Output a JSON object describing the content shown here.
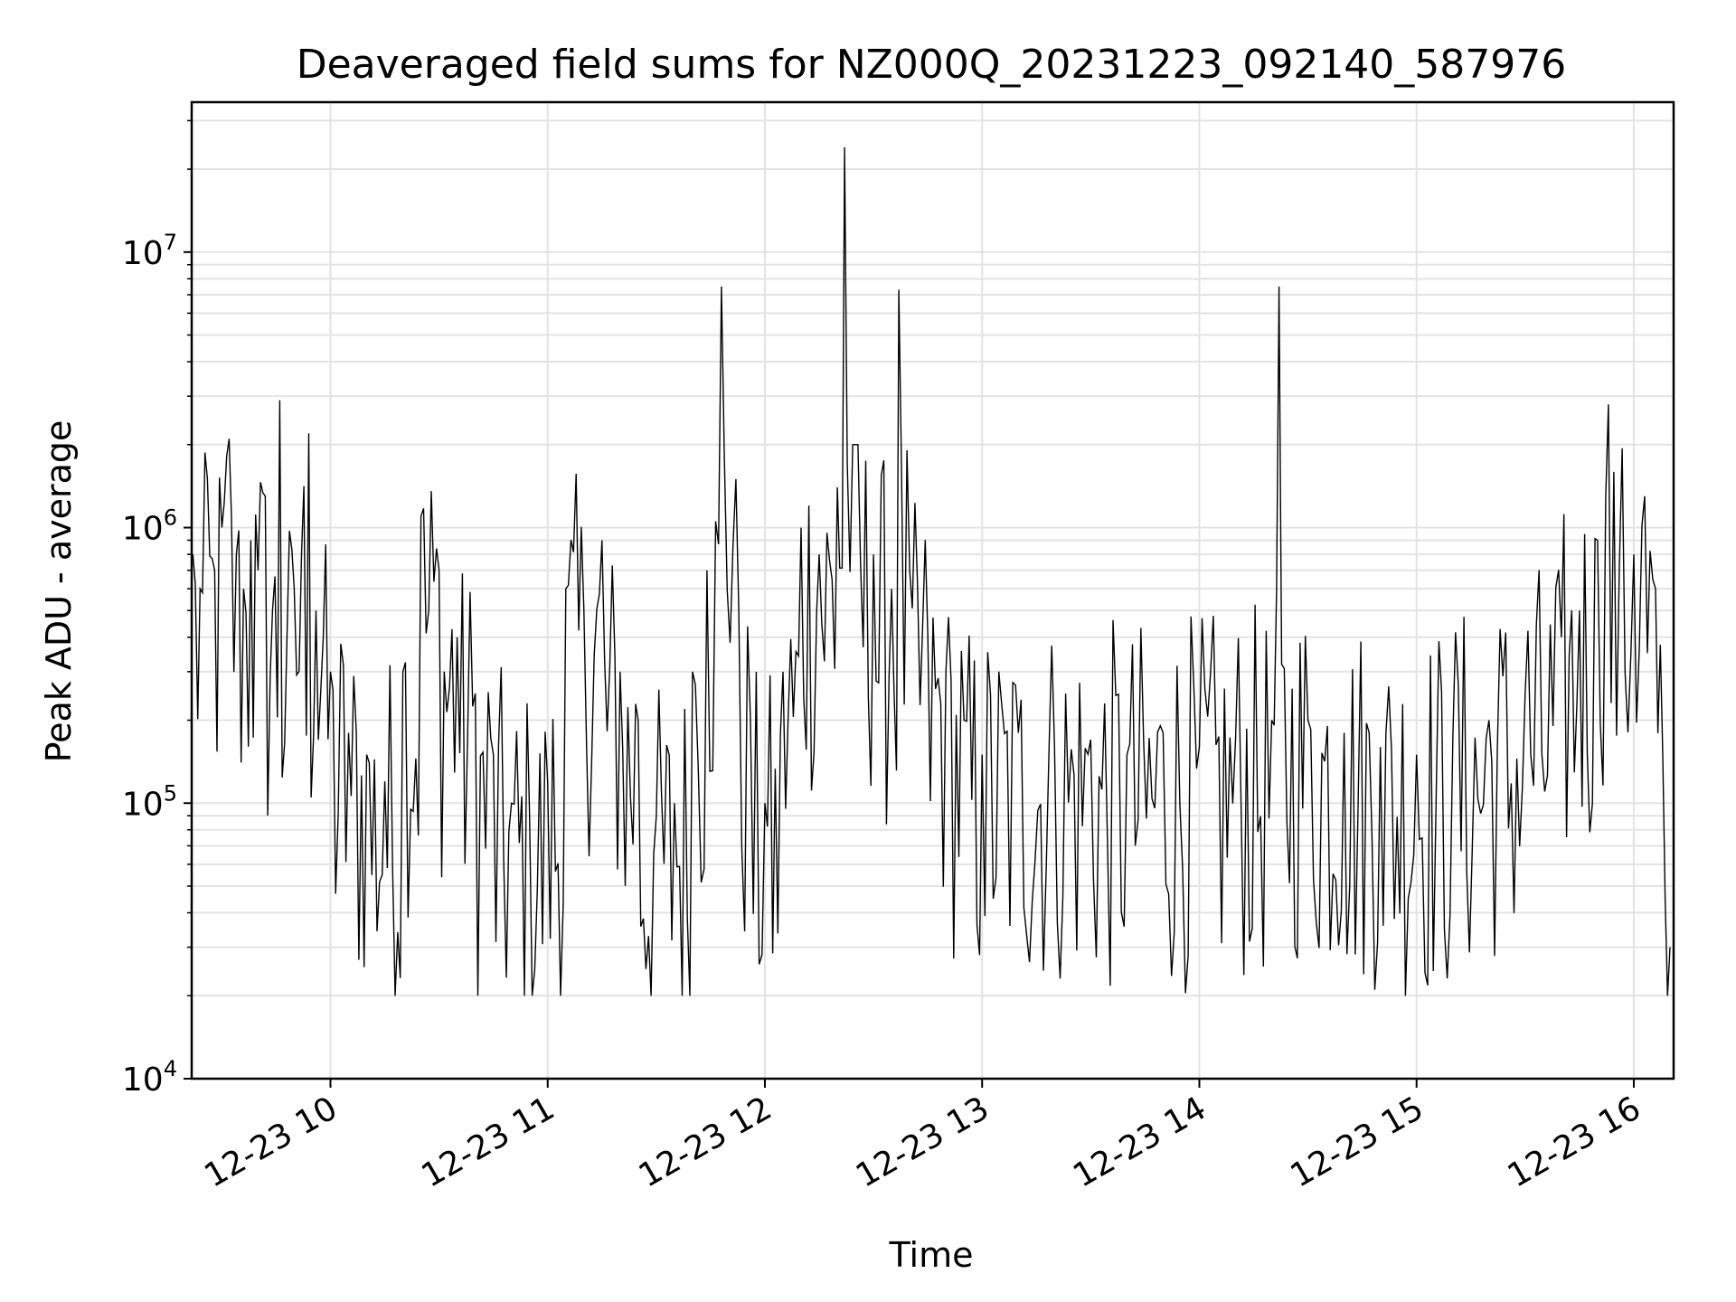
{
  "chart_data": {
    "type": "line",
    "title": "Deaveraged field sums for NZ000Q_20231223_092140_587976",
    "xlabel": "Time",
    "ylabel": "Peak ADU - average",
    "yscale": "log",
    "ylim": [
      10000,
      35000000
    ],
    "xlim": [
      "2023-12-23 09:21:40",
      "2023-12-23 16:11:00"
    ],
    "x_ticks": [
      {
        "value": "2023-12-23 10:00",
        "label": "12-23 10"
      },
      {
        "value": "2023-12-23 11:00",
        "label": "12-23 11"
      },
      {
        "value": "2023-12-23 12:00",
        "label": "12-23 12"
      },
      {
        "value": "2023-12-23 13:00",
        "label": "12-23 13"
      },
      {
        "value": "2023-12-23 14:00",
        "label": "12-23 14"
      },
      {
        "value": "2023-12-23 15:00",
        "label": "12-23 15"
      },
      {
        "value": "2023-12-23 16:00",
        "label": "12-23 16"
      }
    ],
    "y_ticks": [
      {
        "value": 10000,
        "base": "10",
        "exp": "4"
      },
      {
        "value": 100000,
        "base": "10",
        "exp": "5"
      },
      {
        "value": 1000000,
        "base": "10",
        "exp": "6"
      },
      {
        "value": 10000000,
        "base": "10",
        "exp": "7"
      }
    ],
    "grid": true,
    "line_color": "#000000",
    "series": [
      {
        "x": [
          "2023-12-23 09:22",
          "2023-12-23 09:24",
          "2023-12-23 09:26",
          "2023-12-23 09:28",
          "2023-12-23 09:30",
          "2023-12-23 09:32",
          "2023-12-23 09:34",
          "2023-12-23 09:36",
          "2023-12-23 09:38",
          "2023-12-23 09:40",
          "2023-12-23 09:42",
          "2023-12-23 09:44",
          "2023-12-23 09:46",
          "2023-12-23 09:48",
          "2023-12-23 09:50",
          "2023-12-23 09:52",
          "2023-12-23 09:54",
          "2023-12-23 09:56",
          "2023-12-23 09:58",
          "2023-12-23 10:00",
          "2023-12-23 10:05",
          "2023-12-23 10:10",
          "2023-12-23 10:15",
          "2023-12-23 10:20",
          "2023-12-23 10:25",
          "2023-12-23 10:30",
          "2023-12-23 10:35",
          "2023-12-23 10:40",
          "2023-12-23 10:45",
          "2023-12-23 10:50",
          "2023-12-23 10:55",
          "2023-12-23 11:00",
          "2023-12-23 11:05",
          "2023-12-23 11:10",
          "2023-12-23 11:15",
          "2023-12-23 11:20",
          "2023-12-23 11:25",
          "2023-12-23 11:30",
          "2023-12-23 11:35",
          "2023-12-23 11:40",
          "2023-12-23 11:44",
          "2023-12-23 11:48",
          "2023-12-23 11:52",
          "2023-12-23 11:56",
          "2023-12-23 12:00",
          "2023-12-23 12:05",
          "2023-12-23 12:10",
          "2023-12-23 12:15",
          "2023-12-23 12:20",
          "2023-12-23 12:22",
          "2023-12-23 12:25",
          "2023-12-23 12:30",
          "2023-12-23 12:35",
          "2023-12-23 12:37",
          "2023-12-23 12:40",
          "2023-12-23 12:45",
          "2023-12-23 12:50",
          "2023-12-23 12:55",
          "2023-12-23 13:00",
          "2023-12-23 13:10",
          "2023-12-23 13:20",
          "2023-12-23 13:30",
          "2023-12-23 13:40",
          "2023-12-23 13:50",
          "2023-12-23 14:00",
          "2023-12-23 14:10",
          "2023-12-23 14:20",
          "2023-12-23 14:22",
          "2023-12-23 14:30",
          "2023-12-23 14:40",
          "2023-12-23 14:50",
          "2023-12-23 15:00",
          "2023-12-23 15:10",
          "2023-12-23 15:20",
          "2023-12-23 15:30",
          "2023-12-23 15:40",
          "2023-12-23 15:45",
          "2023-12-23 15:50",
          "2023-12-23 15:53",
          "2023-12-23 15:56",
          "2023-12-23 16:00",
          "2023-12-23 16:03",
          "2023-12-23 16:06",
          "2023-12-23 16:08",
          "2023-12-23 16:10"
        ],
        "y": [
          800000,
          600000,
          1500000,
          700000,
          1000000,
          2100000,
          800000,
          600000,
          900000,
          700000,
          1300000,
          500000,
          2900000,
          400000,
          600000,
          800000,
          2200000,
          500000,
          400000,
          300000,
          180000,
          150000,
          120000,
          300000,
          1100000,
          700000,
          400000,
          250000,
          150000,
          100000,
          90000,
          120000,
          600000,
          500000,
          900000,
          300000,
          200000,
          90000,
          100000,
          300000,
          700000,
          7500000,
          1500000,
          200000,
          100000,
          300000,
          1000000,
          800000,
          1400000,
          24000000,
          2000000,
          800000,
          600000,
          7300000,
          700000,
          400000,
          300000,
          200000,
          150000,
          180000,
          160000,
          170000,
          150000,
          180000,
          160000,
          170000,
          200000,
          7500000,
          200000,
          180000,
          160000,
          150000,
          170000,
          200000,
          250000,
          400000,
          500000,
          900000,
          2800000,
          700000,
          800000,
          1300000,
          600000,
          150000,
          30000
        ]
      }
    ]
  }
}
